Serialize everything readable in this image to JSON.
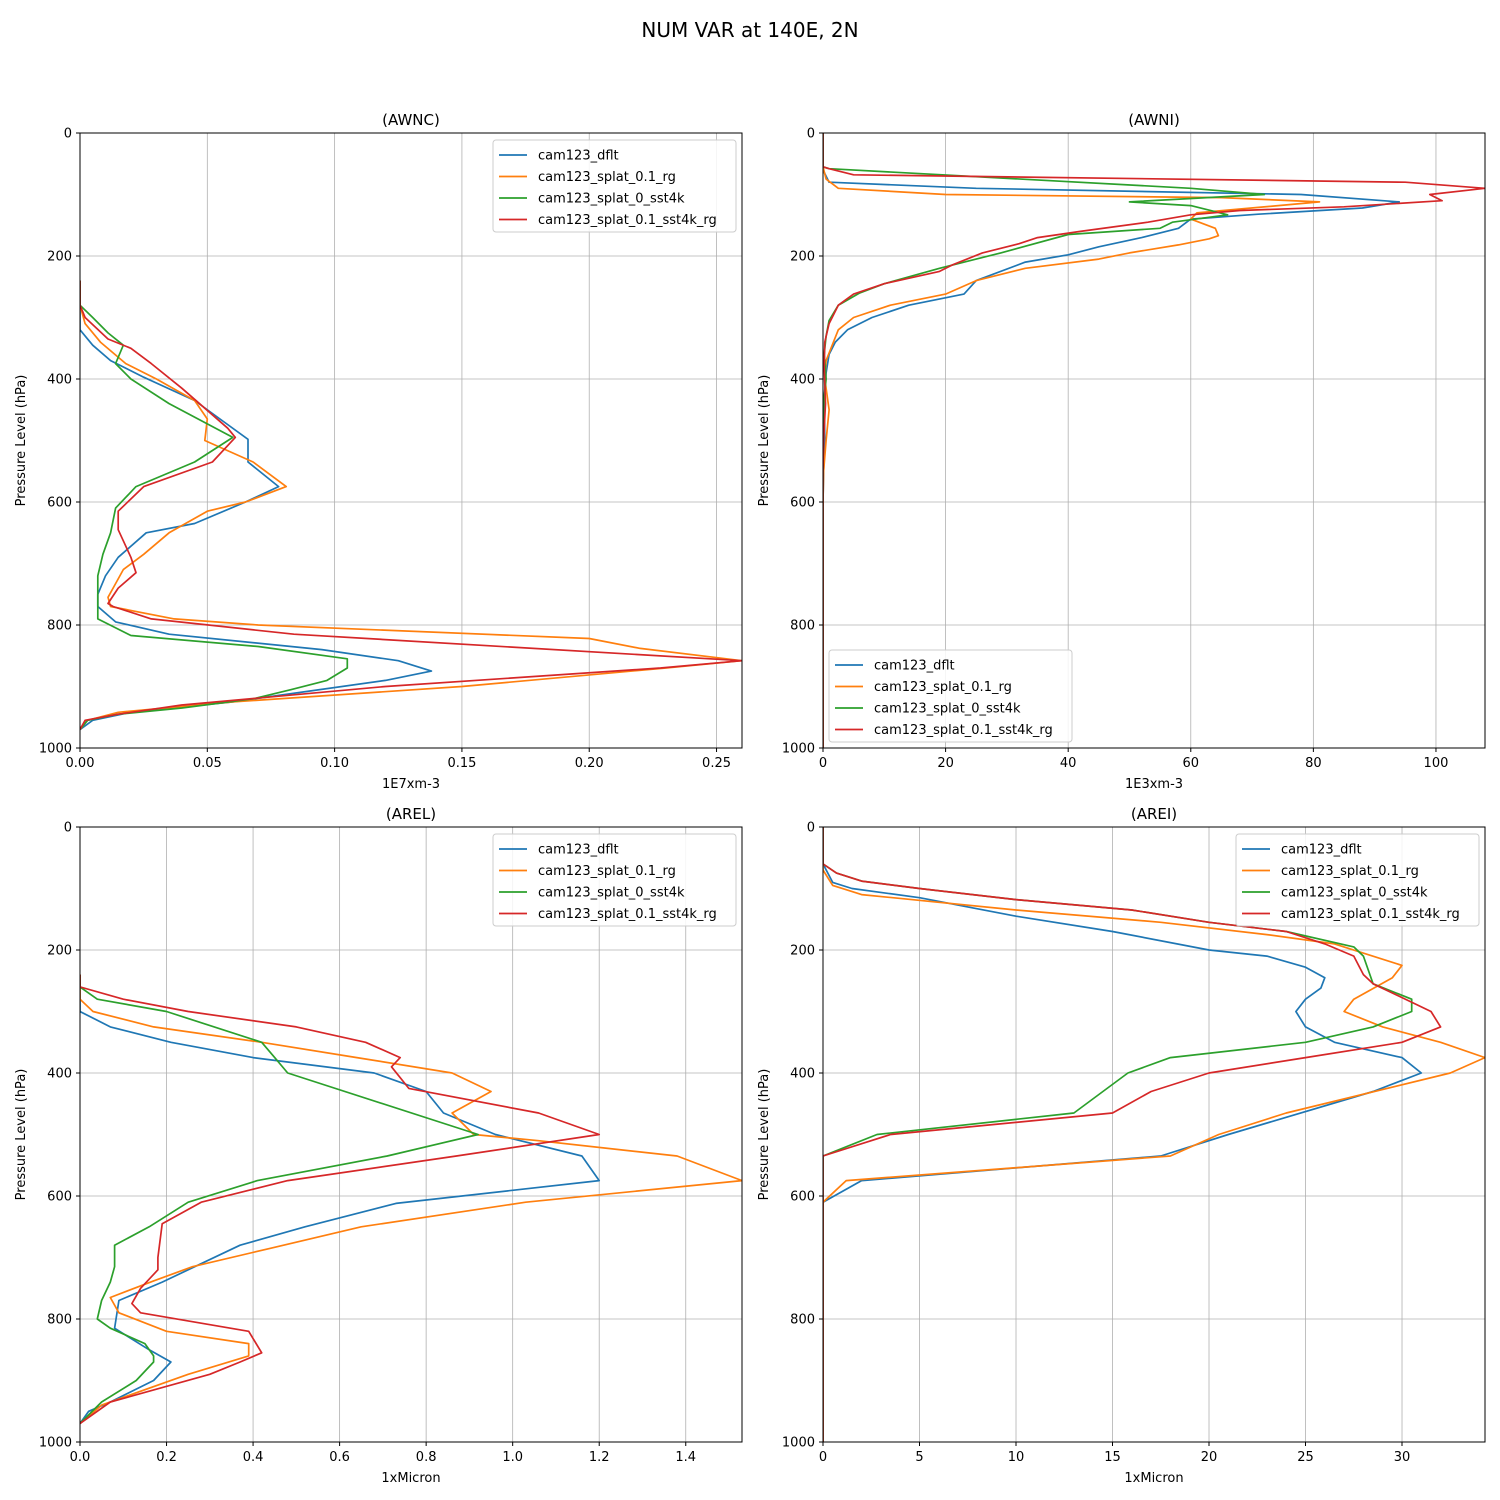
{
  "figure": {
    "title": "NUM VAR at 140E, 2N"
  },
  "colors": [
    "#1f77b4",
    "#ff7f0e",
    "#2ca02c",
    "#d62728"
  ],
  "legend_labels": [
    "cam123_dflt",
    "cam123_splat_0.1_rg",
    "cam123_splat_0_sst4k",
    "cam123_splat_0.1_sst4k_rg"
  ],
  "chart_data": [
    {
      "type": "line",
      "title": "(AWNC)",
      "xlabel": "1E7xm-3",
      "ylabel": "Pressure Level (hPa)",
      "xlim": [
        0,
        0.26
      ],
      "ylim": [
        1000,
        0
      ],
      "xticks": [
        0.0,
        0.05,
        0.1,
        0.15,
        0.2,
        0.25
      ],
      "xtick_labels": [
        "0.00",
        "0.05",
        "0.10",
        "0.15",
        "0.20",
        "0.25"
      ],
      "yticks": [
        0,
        200,
        400,
        600,
        800,
        1000
      ],
      "grid": true,
      "legend_position": "upper right",
      "series": [
        {
          "name": "cam123_dflt",
          "x": [
            0.0,
            0.0,
            0.0,
            0.005,
            0.012,
            0.025,
            0.045,
            0.055,
            0.066,
            0.066,
            0.078,
            0.065,
            0.045,
            0.026,
            0.015,
            0.01,
            0.007,
            0.007,
            0.014,
            0.035,
            0.095,
            0.125,
            0.138,
            0.12,
            0.06,
            0.02,
            0.005,
            0.0
          ],
          "p": [
            240,
            280,
            320,
            345,
            370,
            397,
            435,
            465,
            498,
            535,
            575,
            600,
            635,
            650,
            690,
            720,
            750,
            770,
            795,
            815,
            840,
            858,
            875,
            890,
            925,
            942,
            955,
            970
          ]
        },
        {
          "name": "cam123_splat_0.1_rg",
          "x": [
            0.0,
            0.0,
            0.002,
            0.008,
            0.018,
            0.03,
            0.045,
            0.05,
            0.049,
            0.068,
            0.081,
            0.065,
            0.05,
            0.035,
            0.025,
            0.017,
            0.013,
            0.011,
            0.012,
            0.037,
            0.07,
            0.2,
            0.22,
            0.26,
            0.23,
            0.15,
            0.06,
            0.015,
            0.003,
            0.0
          ],
          "p": [
            240,
            280,
            310,
            340,
            375,
            400,
            435,
            465,
            500,
            535,
            575,
            600,
            615,
            650,
            685,
            710,
            740,
            755,
            770,
            790,
            800,
            822,
            838,
            858,
            870,
            900,
            925,
            942,
            955,
            970
          ]
        },
        {
          "name": "cam123_splat_0_sst4k",
          "x": [
            0.0,
            0.0,
            0.005,
            0.011,
            0.017,
            0.014,
            0.02,
            0.035,
            0.06,
            0.045,
            0.022,
            0.014,
            0.012,
            0.009,
            0.007,
            0.007,
            0.007,
            0.02,
            0.07,
            0.105,
            0.105,
            0.097,
            0.083,
            0.068,
            0.04,
            0.015,
            0.003,
            0.0
          ],
          "p": [
            240,
            280,
            300,
            325,
            345,
            375,
            400,
            440,
            495,
            535,
            575,
            610,
            650,
            685,
            720,
            750,
            790,
            817,
            835,
            855,
            870,
            890,
            905,
            920,
            935,
            945,
            955,
            970
          ]
        },
        {
          "name": "cam123_splat_0.1_sst4k_rg",
          "x": [
            0.0,
            0.0,
            0.002,
            0.011,
            0.02,
            0.028,
            0.04,
            0.058,
            0.061,
            0.052,
            0.025,
            0.015,
            0.015,
            0.02,
            0.022,
            0.015,
            0.011,
            0.013,
            0.028,
            0.084,
            0.26,
            0.228,
            0.12,
            0.04,
            0.015,
            0.002,
            0.0
          ],
          "p": [
            240,
            280,
            300,
            335,
            350,
            375,
            415,
            480,
            495,
            535,
            575,
            615,
            645,
            690,
            715,
            740,
            765,
            770,
            790,
            815,
            858,
            870,
            900,
            930,
            945,
            955,
            970
          ]
        }
      ]
    },
    {
      "type": "line",
      "title": "(AWNI)",
      "xlabel": "1E3xm-3",
      "ylabel": "Pressure Level (hPa)",
      "xlim": [
        0,
        108
      ],
      "ylim": [
        1000,
        0
      ],
      "xticks": [
        0,
        20,
        40,
        60,
        80,
        100
      ],
      "xtick_labels": [
        "0",
        "20",
        "40",
        "60",
        "80",
        "100"
      ],
      "yticks": [
        0,
        200,
        400,
        600,
        800,
        1000
      ],
      "grid": true,
      "legend_position": "lower left",
      "series": [
        {
          "name": "cam123_dflt",
          "x": [
            0.0,
            0.0,
            1.0,
            25.0,
            78.0,
            94.0,
            88.0,
            71.0,
            60.0,
            58.0,
            52.0,
            45.0,
            40.0,
            33.0,
            25.0,
            23.0,
            14.0,
            8.0,
            4.0,
            2.0,
            1.0,
            0.5,
            0.2,
            0.3,
            0.1,
            0.0,
            0.0
          ],
          "p": [
            0,
            60,
            80,
            90,
            100,
            112,
            122,
            132,
            140,
            155,
            170,
            185,
            198,
            210,
            240,
            262,
            280,
            300,
            320,
            340,
            360,
            390,
            430,
            500,
            550,
            600,
            1000
          ]
        },
        {
          "name": "cam123_splat_0.1_rg",
          "x": [
            0.0,
            0.0,
            0.5,
            2.5,
            20.0,
            65.0,
            81.0,
            61.0,
            60.0,
            64.0,
            64.5,
            63.0,
            58.0,
            50.0,
            45.0,
            33.0,
            25.0,
            20.0,
            11.0,
            5.0,
            2.5,
            1.5,
            0.5,
            0.3,
            1.0,
            0.5,
            0.1,
            0.0,
            0.0
          ],
          "p": [
            0,
            55,
            75,
            90,
            100,
            105,
            112,
            130,
            140,
            155,
            167,
            172,
            182,
            195,
            205,
            220,
            240,
            262,
            280,
            300,
            320,
            345,
            370,
            400,
            450,
            500,
            550,
            600,
            1000
          ]
        },
        {
          "name": "cam123_splat_0_sst4k",
          "x": [
            0.0,
            0.0,
            1.0,
            60.0,
            72.0,
            50.0,
            60.0,
            64.0,
            66.0,
            57.0,
            55.0,
            40.0,
            29.0,
            25.0,
            19.0,
            10.0,
            6.0,
            2.5,
            1.0,
            0.5,
            0.2,
            0.5,
            0.1,
            0.0,
            0.0
          ],
          "p": [
            0,
            55,
            58,
            90,
            100,
            112,
            118,
            128,
            133,
            145,
            155,
            165,
            195,
            205,
            220,
            245,
            260,
            280,
            305,
            330,
            360,
            400,
            440,
            500,
            1000
          ]
        },
        {
          "name": "cam123_splat_0.1_sst4k_rg",
          "x": [
            0.0,
            0.0,
            1.0,
            5.0,
            95.0,
            108.0,
            99.0,
            101.0,
            85.0,
            68.0,
            60.0,
            53.0,
            42.0,
            35.0,
            32.0,
            26.0,
            21.0,
            19.0,
            10.0,
            5.0,
            2.5,
            1.0,
            0.3,
            0.2,
            0.4,
            0.1,
            0.0,
            0.0
          ],
          "p": [
            0,
            55,
            58,
            68,
            80,
            90,
            100,
            110,
            120,
            126,
            133,
            145,
            160,
            170,
            180,
            195,
            215,
            225,
            245,
            262,
            280,
            310,
            340,
            380,
            440,
            500,
            550,
            1000
          ]
        }
      ]
    },
    {
      "type": "line",
      "title": "(AREL)",
      "xlabel": "1xMicron",
      "ylabel": "Pressure Level (hPa)",
      "xlim": [
        0,
        1.53
      ],
      "ylim": [
        1000,
        0
      ],
      "xticks": [
        0.0,
        0.2,
        0.4,
        0.6,
        0.8,
        1.0,
        1.2,
        1.4
      ],
      "xtick_labels": [
        "0.0",
        "0.2",
        "0.4",
        "0.6",
        "0.8",
        "1.0",
        "1.2",
        "1.4"
      ],
      "yticks": [
        0,
        200,
        400,
        600,
        800,
        1000
      ],
      "grid": true,
      "legend_position": "upper right",
      "series": [
        {
          "name": "cam123_dflt",
          "x": [
            0.0,
            0.0,
            0.07,
            0.21,
            0.4,
            0.68,
            0.8,
            0.84,
            0.96,
            1.16,
            1.2,
            0.73,
            0.52,
            0.37,
            0.19,
            0.09,
            0.08,
            0.16,
            0.21,
            0.17,
            0.07,
            0.02,
            0.0
          ],
          "p": [
            240,
            300,
            325,
            350,
            375,
            400,
            430,
            465,
            500,
            535,
            575,
            612,
            650,
            680,
            740,
            770,
            815,
            850,
            870,
            900,
            935,
            950,
            970
          ]
        },
        {
          "name": "cam123_splat_0.1_rg",
          "x": [
            0.0,
            0.0,
            0.03,
            0.17,
            0.42,
            0.64,
            0.86,
            0.95,
            0.86,
            0.91,
            1.06,
            1.38,
            1.53,
            1.03,
            0.65,
            0.44,
            0.26,
            0.17,
            0.07,
            0.09,
            0.2,
            0.39,
            0.39,
            0.25,
            0.05,
            0.0
          ],
          "p": [
            240,
            280,
            300,
            325,
            350,
            375,
            400,
            430,
            465,
            500,
            510,
            535,
            575,
            610,
            650,
            685,
            715,
            738,
            765,
            790,
            820,
            840,
            860,
            890,
            940,
            970
          ]
        },
        {
          "name": "cam123_splat_0_sst4k",
          "x": [
            0.0,
            0.0,
            0.04,
            0.2,
            0.42,
            0.45,
            0.48,
            0.92,
            0.71,
            0.41,
            0.25,
            0.16,
            0.08,
            0.08,
            0.07,
            0.05,
            0.04,
            0.07,
            0.15,
            0.17,
            0.17,
            0.13,
            0.05,
            0.0
          ],
          "p": [
            240,
            260,
            280,
            300,
            350,
            375,
            400,
            500,
            535,
            575,
            610,
            650,
            680,
            715,
            740,
            770,
            800,
            815,
            840,
            860,
            870,
            900,
            935,
            970
          ]
        },
        {
          "name": "cam123_splat_0.1_sst4k_rg",
          "x": [
            0.0,
            0.0,
            0.1,
            0.25,
            0.5,
            0.66,
            0.74,
            0.72,
            0.76,
            1.06,
            1.2,
            0.87,
            0.48,
            0.28,
            0.19,
            0.18,
            0.18,
            0.14,
            0.12,
            0.14,
            0.39,
            0.42,
            0.37,
            0.3,
            0.07,
            0.0
          ],
          "p": [
            240,
            260,
            280,
            300,
            325,
            350,
            375,
            390,
            425,
            465,
            500,
            535,
            575,
            610,
            645,
            700,
            720,
            750,
            775,
            790,
            820,
            855,
            870,
            890,
            935,
            970
          ]
        }
      ]
    },
    {
      "type": "line",
      "title": "(AREI)",
      "xlabel": "1xMicron",
      "ylabel": "Pressure Level (hPa)",
      "xlim": [
        0,
        34.3
      ],
      "ylim": [
        1000,
        0
      ],
      "xticks": [
        0,
        5,
        10,
        15,
        20,
        25,
        30
      ],
      "xtick_labels": [
        "0",
        "5",
        "10",
        "15",
        "20",
        "25",
        "30"
      ],
      "yticks": [
        0,
        200,
        400,
        600,
        800,
        1000
      ],
      "grid": true,
      "legend_position": "upper right",
      "series": [
        {
          "name": "cam123_dflt",
          "x": [
            0.0,
            0.0,
            0.5,
            1.5,
            5.0,
            10.0,
            15.0,
            20.0,
            23.0,
            25.0,
            26.0,
            25.8,
            25.0,
            24.5,
            25.0,
            26.5,
            30.0,
            31.0,
            28.5,
            21.0,
            17.5,
            2.0,
            0.0,
            0.0
          ],
          "p": [
            0,
            60,
            90,
            100,
            115,
            145,
            170,
            200,
            210,
            228,
            245,
            262,
            280,
            300,
            325,
            350,
            375,
            400,
            430,
            500,
            535,
            575,
            610,
            1000
          ]
        },
        {
          "name": "cam123_splat_0.1_rg",
          "x": [
            0.0,
            0.0,
            0.5,
            2.0,
            10.0,
            17.5,
            23.0,
            26.5,
            30.0,
            29.5,
            27.5,
            27.0,
            29.0,
            32.0,
            34.3,
            32.5,
            24.0,
            20.5,
            18.0,
            1.2,
            0.0,
            0.0
          ],
          "p": [
            0,
            70,
            95,
            110,
            135,
            155,
            175,
            190,
            225,
            245,
            280,
            300,
            325,
            350,
            375,
            400,
            465,
            500,
            535,
            575,
            610,
            1000
          ]
        },
        {
          "name": "cam123_splat_0_sst4k",
          "x": [
            0.0,
            0.0,
            0.7,
            2.0,
            5.0,
            10.0,
            16.0,
            20.0,
            24.0,
            27.5,
            28.0,
            28.5,
            30.5,
            30.5,
            28.5,
            25.0,
            18.0,
            15.8,
            14.5,
            13.0,
            2.8,
            0.0,
            0.0
          ],
          "p": [
            0,
            60,
            75,
            88,
            100,
            118,
            135,
            155,
            170,
            195,
            210,
            255,
            280,
            300,
            325,
            350,
            375,
            400,
            430,
            465,
            500,
            535,
            1000
          ]
        },
        {
          "name": "cam123_splat_0.1_sst4k_rg",
          "x": [
            0.0,
            0.0,
            0.7,
            2.0,
            5.0,
            10.0,
            16.0,
            20.0,
            24.0,
            26.0,
            27.5,
            28.0,
            28.5,
            31.5,
            32.0,
            30.0,
            25.0,
            20.0,
            17.0,
            15.0,
            3.5,
            0.0,
            0.0
          ],
          "p": [
            0,
            60,
            75,
            88,
            100,
            118,
            135,
            155,
            170,
            190,
            210,
            240,
            255,
            300,
            325,
            350,
            375,
            400,
            430,
            465,
            500,
            535,
            1000
          ]
        }
      ]
    }
  ]
}
